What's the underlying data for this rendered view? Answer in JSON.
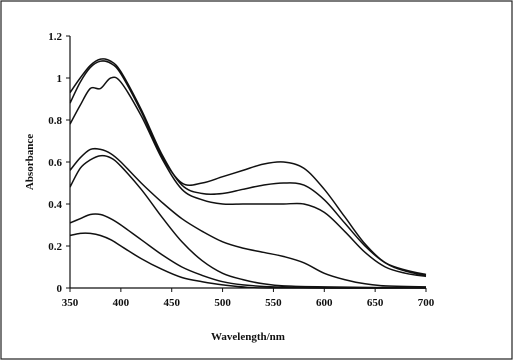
{
  "chart_data": {
    "type": "line",
    "title": "",
    "xlabel": "Wavelength/nm",
    "ylabel": "Absorbance",
    "xlim": [
      350,
      700
    ],
    "ylim": [
      0,
      1.2
    ],
    "xticks": [
      350,
      400,
      450,
      500,
      550,
      600,
      650,
      700
    ],
    "yticks": [
      0,
      0.2,
      0.4,
      0.6,
      0.8,
      1,
      1.2
    ],
    "xtick_labels": [
      "350",
      "400",
      "450",
      "500",
      "550",
      "600",
      "650",
      "700"
    ],
    "ytick_labels": [
      "0",
      "0.2",
      "0.4",
      "0.6",
      "0.8",
      "1",
      "1.2"
    ],
    "grid": false,
    "legend": "none",
    "line_color": "#111111",
    "series": [
      {
        "points": [
          [
            350,
            0.93
          ],
          [
            360,
            1.0
          ],
          [
            370,
            1.06
          ],
          [
            380,
            1.09
          ],
          [
            390,
            1.08
          ],
          [
            400,
            1.03
          ],
          [
            420,
            0.85
          ],
          [
            440,
            0.64
          ],
          [
            460,
            0.49
          ],
          [
            480,
            0.45
          ],
          [
            500,
            0.45
          ],
          [
            520,
            0.47
          ],
          [
            540,
            0.49
          ],
          [
            560,
            0.5
          ],
          [
            580,
            0.49
          ],
          [
            600,
            0.42
          ],
          [
            620,
            0.31
          ],
          [
            640,
            0.2
          ],
          [
            660,
            0.12
          ],
          [
            680,
            0.085
          ],
          [
            700,
            0.065
          ]
        ]
      },
      {
        "points": [
          [
            350,
            0.88
          ],
          [
            360,
            0.98
          ],
          [
            370,
            1.05
          ],
          [
            380,
            1.08
          ],
          [
            390,
            1.07
          ],
          [
            400,
            1.02
          ],
          [
            420,
            0.84
          ],
          [
            440,
            0.63
          ],
          [
            460,
            0.5
          ],
          [
            480,
            0.5
          ],
          [
            500,
            0.53
          ],
          [
            520,
            0.56
          ],
          [
            540,
            0.59
          ],
          [
            560,
            0.6
          ],
          [
            580,
            0.57
          ],
          [
            600,
            0.47
          ],
          [
            620,
            0.34
          ],
          [
            640,
            0.21
          ],
          [
            660,
            0.12
          ],
          [
            680,
            0.08
          ],
          [
            700,
            0.06
          ]
        ]
      },
      {
        "points": [
          [
            350,
            0.78
          ],
          [
            360,
            0.87
          ],
          [
            370,
            0.95
          ],
          [
            380,
            0.95
          ],
          [
            390,
            1.0
          ],
          [
            400,
            0.98
          ],
          [
            420,
            0.82
          ],
          [
            440,
            0.62
          ],
          [
            460,
            0.47
          ],
          [
            480,
            0.42
          ],
          [
            500,
            0.4
          ],
          [
            520,
            0.4
          ],
          [
            540,
            0.4
          ],
          [
            560,
            0.4
          ],
          [
            580,
            0.4
          ],
          [
            600,
            0.36
          ],
          [
            620,
            0.27
          ],
          [
            640,
            0.17
          ],
          [
            660,
            0.1
          ],
          [
            680,
            0.07
          ],
          [
            700,
            0.055
          ]
        ]
      },
      {
        "points": [
          [
            350,
            0.56
          ],
          [
            360,
            0.62
          ],
          [
            370,
            0.66
          ],
          [
            380,
            0.66
          ],
          [
            390,
            0.64
          ],
          [
            400,
            0.6
          ],
          [
            420,
            0.5
          ],
          [
            440,
            0.41
          ],
          [
            460,
            0.33
          ],
          [
            480,
            0.27
          ],
          [
            500,
            0.22
          ],
          [
            520,
            0.19
          ],
          [
            540,
            0.17
          ],
          [
            560,
            0.15
          ],
          [
            580,
            0.12
          ],
          [
            600,
            0.07
          ],
          [
            620,
            0.04
          ],
          [
            640,
            0.02
          ],
          [
            660,
            0.01
          ],
          [
            700,
            0.005
          ]
        ]
      },
      {
        "points": [
          [
            350,
            0.48
          ],
          [
            360,
            0.57
          ],
          [
            370,
            0.61
          ],
          [
            380,
            0.63
          ],
          [
            390,
            0.62
          ],
          [
            400,
            0.58
          ],
          [
            420,
            0.47
          ],
          [
            440,
            0.34
          ],
          [
            460,
            0.22
          ],
          [
            480,
            0.13
          ],
          [
            500,
            0.07
          ],
          [
            520,
            0.04
          ],
          [
            540,
            0.02
          ],
          [
            560,
            0.01
          ],
          [
            600,
            0.005
          ],
          [
            700,
            0.0
          ]
        ]
      },
      {
        "points": [
          [
            350,
            0.31
          ],
          [
            360,
            0.33
          ],
          [
            370,
            0.35
          ],
          [
            380,
            0.35
          ],
          [
            390,
            0.33
          ],
          [
            400,
            0.3
          ],
          [
            420,
            0.23
          ],
          [
            440,
            0.16
          ],
          [
            460,
            0.1
          ],
          [
            480,
            0.06
          ],
          [
            500,
            0.03
          ],
          [
            520,
            0.015
          ],
          [
            550,
            0.005
          ],
          [
            600,
            0.0
          ],
          [
            700,
            0.0
          ]
        ]
      },
      {
        "points": [
          [
            350,
            0.25
          ],
          [
            360,
            0.26
          ],
          [
            370,
            0.26
          ],
          [
            380,
            0.25
          ],
          [
            390,
            0.23
          ],
          [
            400,
            0.2
          ],
          [
            420,
            0.14
          ],
          [
            440,
            0.09
          ],
          [
            460,
            0.05
          ],
          [
            480,
            0.03
          ],
          [
            500,
            0.015
          ],
          [
            520,
            0.005
          ],
          [
            550,
            0.0
          ],
          [
            700,
            0.0
          ]
        ]
      }
    ]
  }
}
